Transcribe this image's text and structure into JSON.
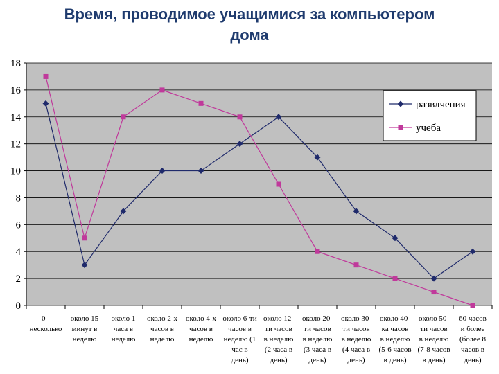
{
  "page": {
    "title_line1": "Время, проводимое учащимися за компьютером",
    "title_line2": "дома"
  },
  "chart_data": {
    "type": "line",
    "ylim": [
      0,
      18
    ],
    "yticks": [
      0,
      2,
      4,
      6,
      8,
      10,
      12,
      14,
      16,
      18
    ],
    "grid": true,
    "legend_position": "top-right",
    "categories": [
      [
        "0 -",
        "несколько"
      ],
      [
        "около 15",
        "минут в",
        "неделю"
      ],
      [
        "около 1",
        "часа в",
        "неделю"
      ],
      [
        "около 2-х",
        "часов в",
        "неделю"
      ],
      [
        "около 4-х",
        "часов в",
        "неделю"
      ],
      [
        "около 6-ти",
        "часов в",
        "неделю (1",
        "час в",
        "день)"
      ],
      [
        "около 12-",
        "ти часов",
        "в неделю",
        "(2 часа в",
        "день)"
      ],
      [
        "около 20-",
        "ти часов",
        "в неделю",
        "(3 часа в",
        "день)"
      ],
      [
        "около 30-",
        "ти часов",
        "в неделю",
        "(4 часа в",
        "день)"
      ],
      [
        "около 40-",
        "ка часов",
        "в неделю",
        "(5-6 часов",
        "в день)"
      ],
      [
        "около 50-",
        "ти часов",
        "в неделю",
        "(7-8 часов",
        "в день)"
      ],
      [
        "60 часов",
        "и более",
        "(более 8",
        "часов в",
        "день)"
      ]
    ],
    "series": [
      {
        "name": "развлчения",
        "color": "#1f2a6b",
        "marker": "diamond",
        "values": [
          15,
          3,
          7,
          10,
          10,
          12,
          14,
          11,
          7,
          5,
          2,
          4
        ]
      },
      {
        "name": "учеба",
        "color": "#c0399b",
        "marker": "square",
        "values": [
          17,
          5,
          14,
          16,
          15,
          14,
          9,
          4,
          3,
          2,
          1,
          0
        ]
      }
    ]
  }
}
